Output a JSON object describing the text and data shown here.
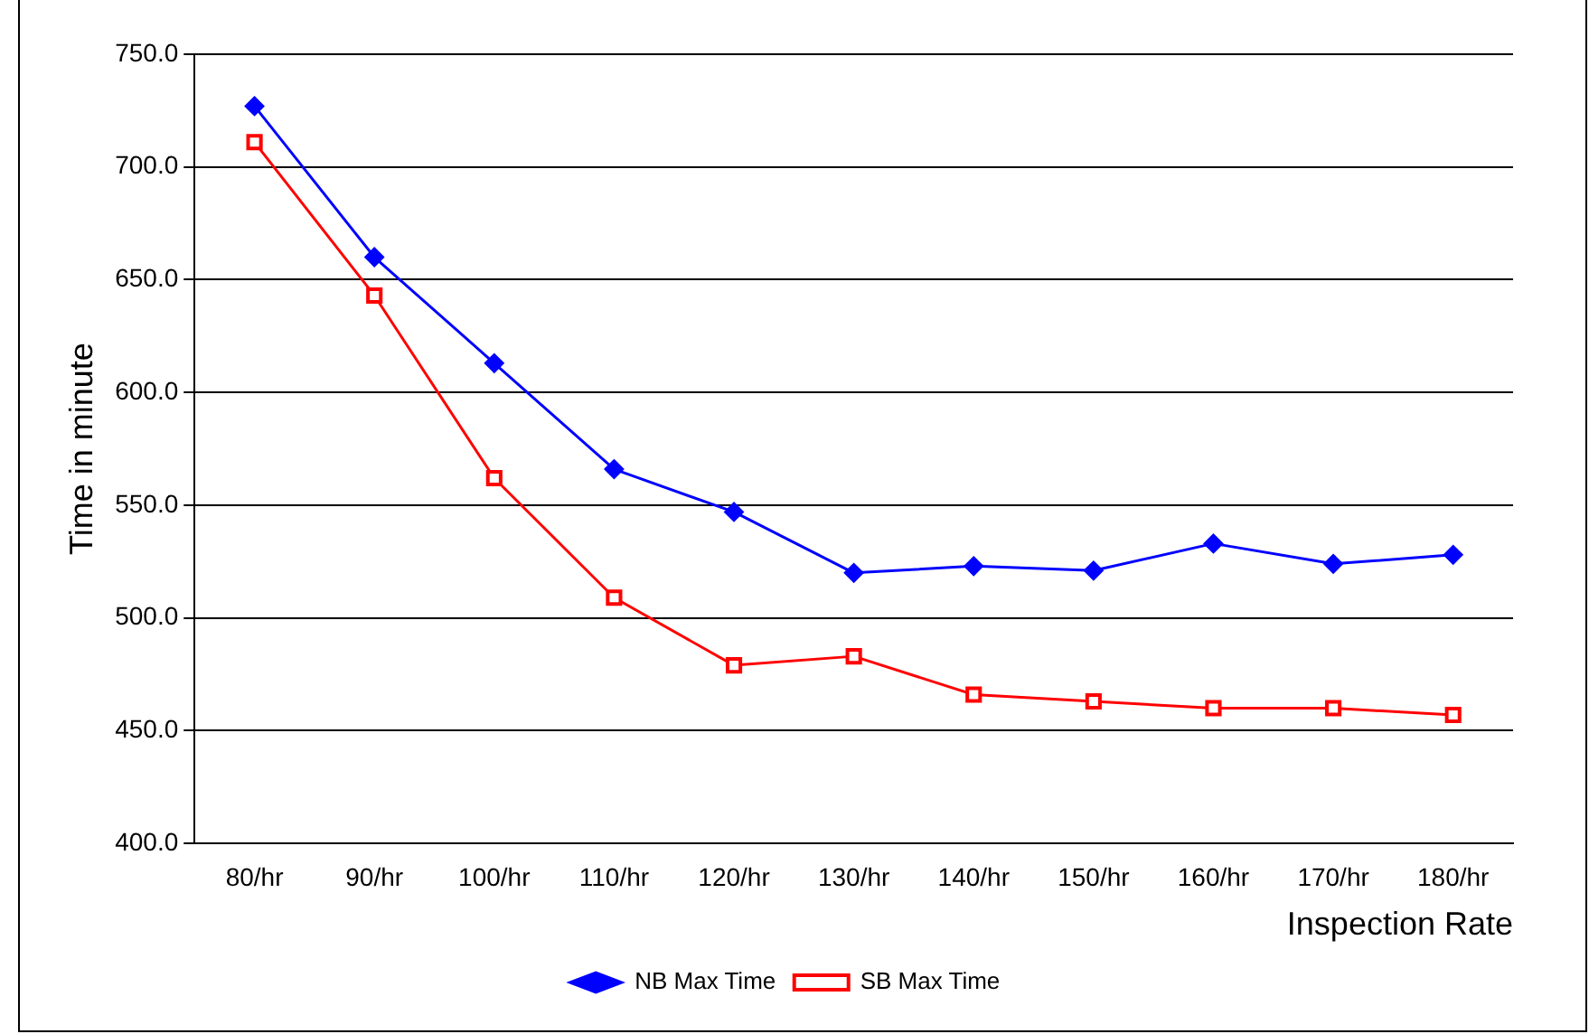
{
  "chart_data": {
    "type": "line",
    "xlabel": "Inspection Rate",
    "ylabel": "Time in minute",
    "categories": [
      "80/hr",
      "90/hr",
      "100/hr",
      "110/hr",
      "120/hr",
      "130/hr",
      "140/hr",
      "150/hr",
      "160/hr",
      "170/hr",
      "180/hr"
    ],
    "series": [
      {
        "name": "NB Max Time",
        "color": "#0000ff",
        "marker": "diamond",
        "values": [
          727,
          660,
          613,
          566,
          547,
          520,
          523,
          521,
          533,
          524,
          528
        ]
      },
      {
        "name": "SB Max Time",
        "color": "#ff0000",
        "marker": "square",
        "values": [
          711,
          643,
          562,
          509,
          479,
          483,
          466,
          463,
          460,
          460,
          457
        ]
      }
    ],
    "ylim": [
      400,
      750
    ],
    "yticks": [
      {
        "value": 400,
        "label": "400.0"
      },
      {
        "value": 450,
        "label": "450.0"
      },
      {
        "value": 500,
        "label": "500.0"
      },
      {
        "value": 550,
        "label": "550.0"
      },
      {
        "value": 600,
        "label": "600.0"
      },
      {
        "value": 650,
        "label": "650.0"
      },
      {
        "value": 700,
        "label": "700.0"
      },
      {
        "value": 750,
        "label": "750.0"
      }
    ],
    "grid": "y",
    "legend": "bottom",
    "line_style": "solid"
  }
}
